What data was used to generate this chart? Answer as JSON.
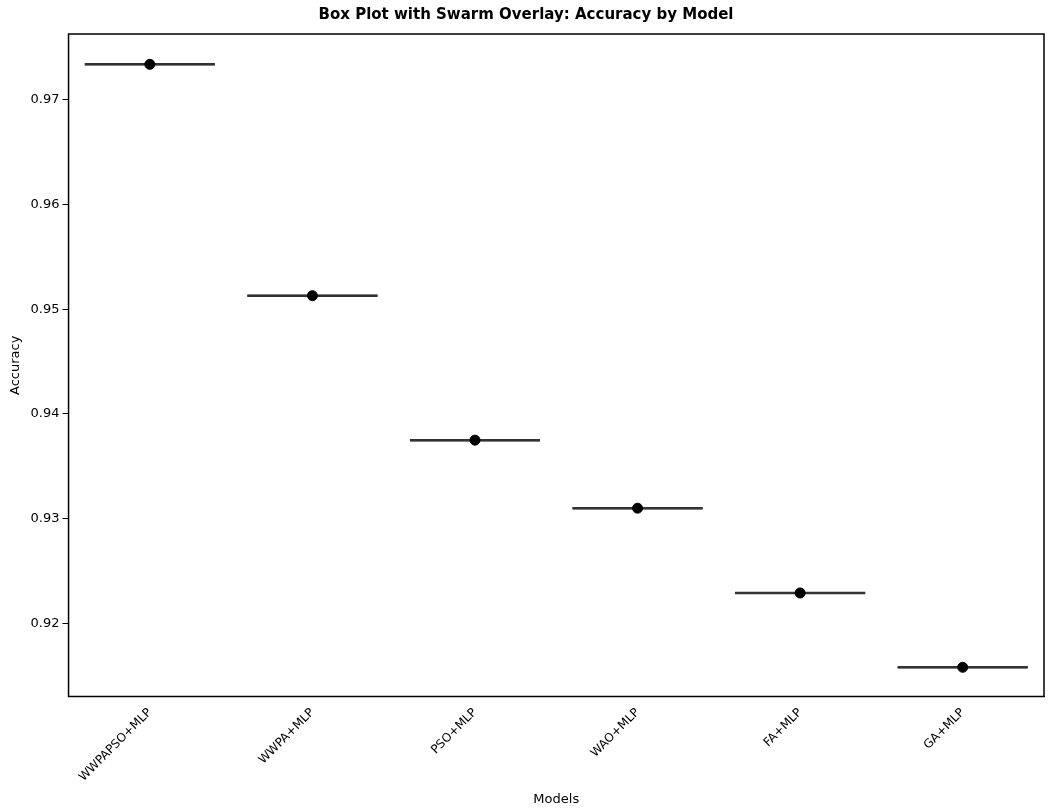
{
  "chart_data": {
    "type": "box",
    "title": "Box Plot with Swarm Overlay: Accuracy by Model",
    "xlabel": "Models",
    "ylabel": "Accuracy",
    "categories": [
      "WWPAPSO+MLP",
      "WWPA+MLP",
      "PSO+MLP",
      "WAO+MLP",
      "FA+MLP",
      "GA+MLP"
    ],
    "series": [
      {
        "color": "#333333",
        "boxes": [
          {
            "low": 0.9734,
            "q1": 0.9734,
            "median": 0.9734,
            "q3": 0.9734,
            "high": 0.9734
          },
          {
            "low": 0.9513,
            "q1": 0.9513,
            "median": 0.9513,
            "q3": 0.9513,
            "high": 0.9513
          },
          {
            "low": 0.9375,
            "q1": 0.9375,
            "median": 0.9375,
            "q3": 0.9375,
            "high": 0.9375
          },
          {
            "low": 0.931,
            "q1": 0.931,
            "median": 0.931,
            "q3": 0.931,
            "high": 0.931
          },
          {
            "low": 0.9229,
            "q1": 0.9229,
            "median": 0.9229,
            "q3": 0.9229,
            "high": 0.9229
          },
          {
            "low": 0.9158,
            "q1": 0.9158,
            "median": 0.9158,
            "q3": 0.9158,
            "high": 0.9158
          }
        ]
      },
      {
        "type": "scatter",
        "color": "#000000",
        "x": [
          "WWPAPSO+MLP",
          "WWPA+MLP",
          "PSO+MLP",
          "WAO+MLP",
          "FA+MLP",
          "GA+MLP"
        ],
        "values": [
          0.9734,
          0.9513,
          0.9375,
          0.931,
          0.9229,
          0.9158
        ]
      }
    ],
    "ylim": [
      0.913,
      0.9763
    ],
    "yticks": [
      0.92,
      0.93,
      0.94,
      0.95,
      0.96,
      0.97
    ],
    "grid": false,
    "legend": false,
    "marker": "circle"
  }
}
